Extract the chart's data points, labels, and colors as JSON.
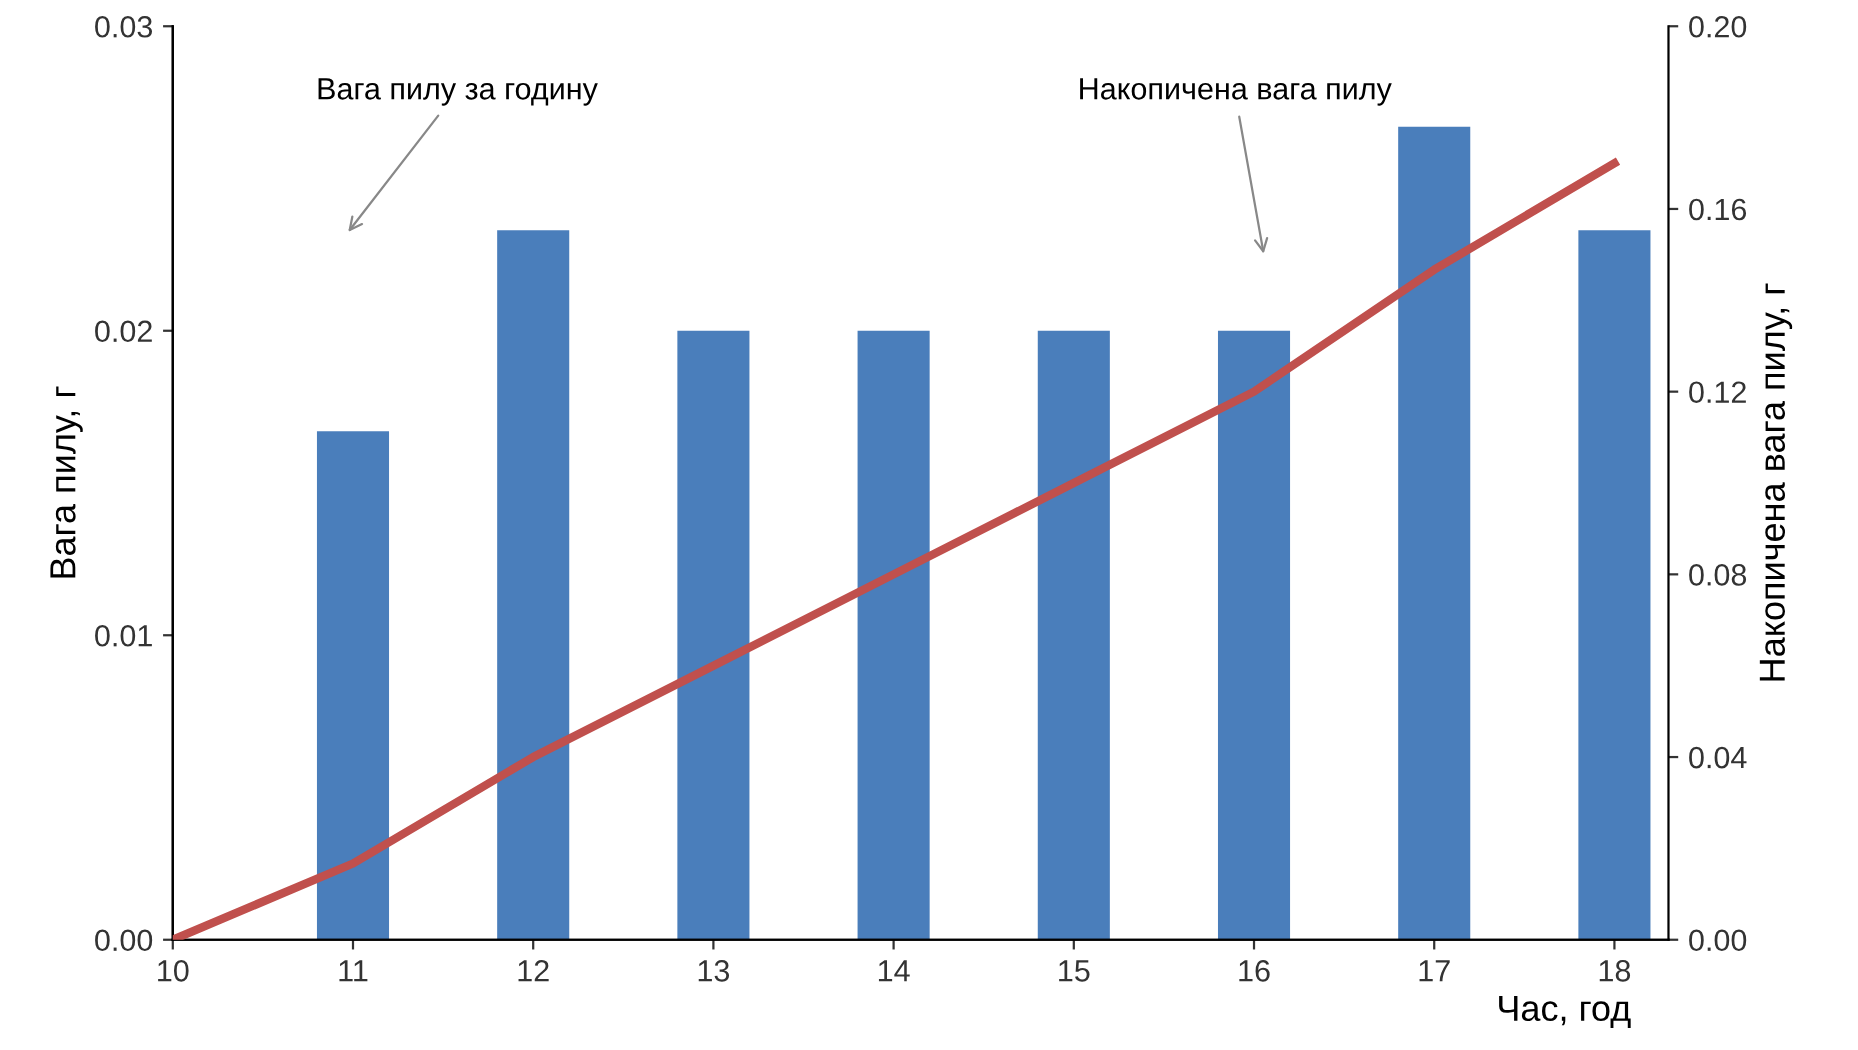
{
  "chart_data": {
    "type": "bar",
    "xlabel": "Час, год",
    "ylabel": "Вага пилу, г",
    "y2label": "Накопичена вага пилу, г",
    "x": [
      11,
      12,
      13,
      14,
      15,
      16,
      17,
      18
    ],
    "series": [
      {
        "color": "#4a7ebb",
        "values": [
          0.0167,
          0.0233,
          0.02,
          0.02,
          0.02,
          0.02,
          0.0267,
          0.0233
        ]
      },
      {
        "type": "line",
        "axis": "y2",
        "color": "#c0504d",
        "x": [
          10,
          11,
          12,
          13,
          14,
          15,
          16,
          17,
          18
        ],
        "values": [
          0,
          0.0167,
          0.04,
          0.06,
          0.08,
          0.1,
          0.12,
          0.1467,
          0.17
        ],
        "marker": "none",
        "line_style": "solid"
      }
    ],
    "xlim": [
      10,
      18.3
    ],
    "xticks": [
      10,
      11,
      12,
      13,
      14,
      15,
      16,
      17,
      18
    ],
    "ylim": [
      0,
      0.03
    ],
    "yticks": [
      {
        "value": 0,
        "label": "0.00"
      },
      {
        "value": 0.01,
        "label": "0.01"
      },
      {
        "value": 0.02,
        "label": "0.02"
      },
      {
        "value": 0.03,
        "label": "0.03"
      }
    ],
    "y2lim": [
      0,
      0.2
    ],
    "y2ticks": [
      {
        "value": 0,
        "label": "0.00"
      },
      {
        "value": 0.04,
        "label": "0.04"
      },
      {
        "value": 0.08,
        "label": "0.08"
      },
      {
        "value": 0.12,
        "label": "0.12"
      },
      {
        "value": 0.16,
        "label": "0.16"
      },
      {
        "value": 0.2,
        "label": "0.20"
      }
    ],
    "annotations": [
      "Вага пилу за годину",
      "Накопичена вага пилу"
    ],
    "grid": false,
    "legend": false
  }
}
